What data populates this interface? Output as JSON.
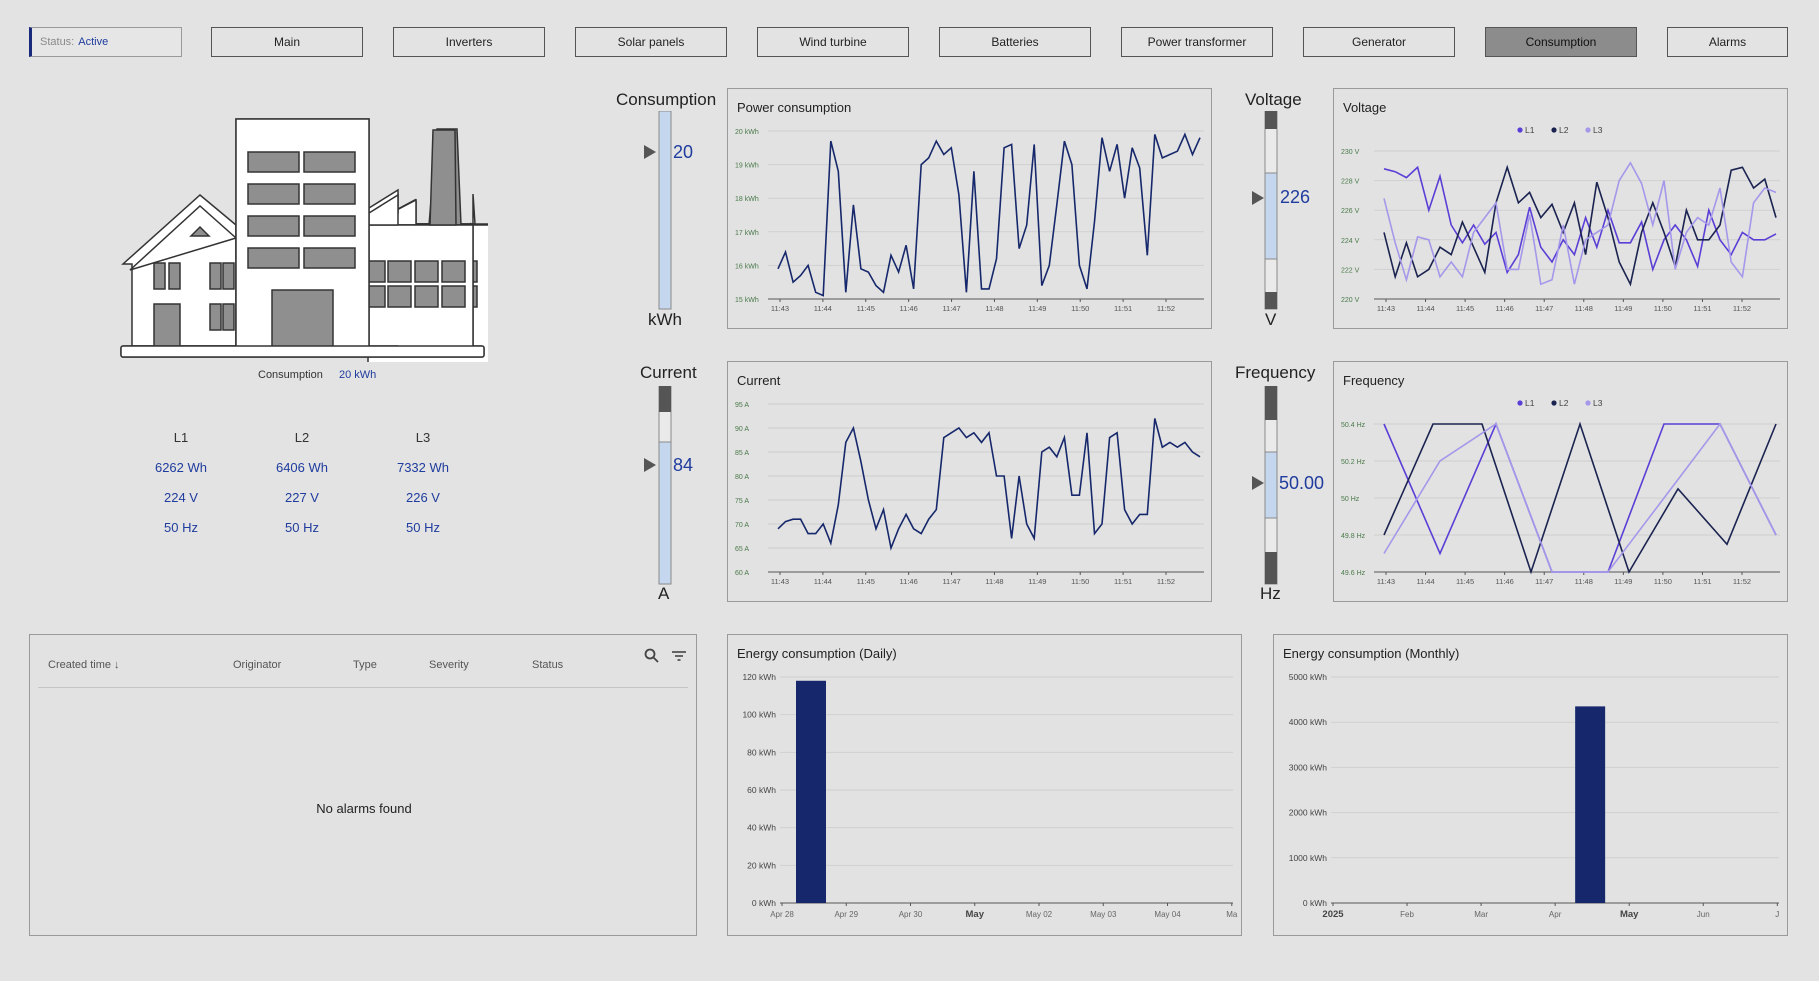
{
  "nav": {
    "status_key": "Status:",
    "status_value": "Active",
    "buttons": [
      "Main",
      "Inverters",
      "Solar panels",
      "Wind turbine",
      "Batteries",
      "Power transformer",
      "Generator",
      "Consumption",
      "Alarms"
    ],
    "active": "Consumption"
  },
  "building": {
    "consumption_label": "Consumption",
    "consumption_value": "20 kWh"
  },
  "phases": {
    "headers": [
      "L1",
      "L2",
      "L3"
    ],
    "rows": [
      [
        "6262 Wh",
        "6406 Wh",
        "7332 Wh"
      ],
      [
        "224 V",
        "227 V",
        "226 V"
      ],
      [
        "50 Hz",
        "50 Hz",
        "50 Hz"
      ]
    ]
  },
  "gauges": {
    "consumption": {
      "title": "Consumption",
      "value": "20",
      "unit": "kWh",
      "level": 1.0
    },
    "current": {
      "title": "Current",
      "value": "84",
      "unit": "A",
      "level": 0.84
    },
    "voltage": {
      "title": "Voltage",
      "value": "226",
      "unit": "V",
      "level": 0.5
    },
    "frequency": {
      "title": "Frequency",
      "value": "50.00",
      "unit": "Hz",
      "level": 0.5
    }
  },
  "colors": {
    "navy": "#16286b",
    "l1": "#5b3ed6",
    "l2": "#1b2350",
    "l3": "#a597ea",
    "gauge_fill": "#c5d7ee",
    "gauge_dark": "#555555"
  },
  "charts": {
    "power": {
      "title": "Power consumption"
    },
    "current": {
      "title": "Current"
    },
    "voltage": {
      "title": "Voltage",
      "legend": [
        "L1",
        "L2",
        "L3"
      ]
    },
    "frequency": {
      "title": "Frequency",
      "legend": [
        "L1",
        "L2",
        "L3"
      ]
    },
    "daily": {
      "title": "Energy consumption (Daily)"
    },
    "monthly": {
      "title": "Energy consumption (Monthly)"
    }
  },
  "alarms": {
    "columns": [
      "Created time",
      "Originator",
      "Type",
      "Severity",
      "Status"
    ],
    "empty_text": "No alarms found",
    "sort_arrow": "↓"
  },
  "chart_data": [
    {
      "type": "line",
      "title": "Power consumption",
      "x_ticks": [
        "11:43",
        "11:44",
        "11:45",
        "11:46",
        "11:47",
        "11:48",
        "11:49",
        "11:50",
        "11:51",
        "11:52"
      ],
      "y_ticks": [
        "20 kWh",
        "19 kWh",
        "18 kWh",
        "17 kWh",
        "16 kWh",
        "15 kWh"
      ],
      "ylim": [
        15,
        20
      ],
      "series": [
        {
          "values": [
            15.9,
            16.4,
            15.5,
            15.7,
            16.0,
            15.2,
            15.1,
            19.7,
            18.8,
            15.2,
            17.8,
            15.9,
            15.8,
            15.4,
            15.2,
            16.3,
            15.8,
            16.6,
            15.3,
            19.0,
            19.2,
            19.7,
            19.3,
            19.5,
            18.1,
            15.2,
            18.8,
            15.3,
            15.3,
            16.2,
            19.5,
            19.6,
            16.5,
            17.2,
            19.6,
            15.4,
            16.0,
            17.8,
            19.7,
            19.0,
            16.0,
            15.3,
            17.3,
            19.8,
            18.8,
            19.6,
            18.0,
            19.5,
            18.9,
            16.3,
            19.9,
            19.2,
            19.3,
            19.4,
            19.9,
            19.3,
            19.8
          ]
        }
      ]
    },
    {
      "type": "line",
      "title": "Current",
      "x_ticks": [
        "11:43",
        "11:44",
        "11:45",
        "11:46",
        "11:47",
        "11:48",
        "11:49",
        "11:50",
        "11:51",
        "11:52"
      ],
      "y_ticks": [
        "95 A",
        "90 A",
        "85 A",
        "80 A",
        "75 A",
        "70 A",
        "65 A",
        "60 A"
      ],
      "ylim": [
        60,
        95
      ],
      "series": [
        {
          "values": [
            69,
            70.5,
            71,
            71,
            68,
            68,
            70,
            66,
            74,
            87,
            90,
            83,
            75,
            69,
            73,
            65,
            69,
            72,
            69,
            68,
            71,
            73,
            88,
            89,
            90,
            88,
            89,
            87,
            89,
            80,
            80,
            67,
            80,
            70,
            67,
            85,
            86,
            84,
            88,
            76,
            76,
            89,
            68,
            70,
            88,
            89,
            73,
            70,
            72,
            72,
            92,
            86,
            87,
            86,
            87,
            85,
            84
          ]
        }
      ]
    },
    {
      "type": "line",
      "title": "Voltage",
      "x_ticks": [
        "11:43",
        "11:44",
        "11:45",
        "11:46",
        "11:47",
        "11:48",
        "11:49",
        "11:50",
        "11:51",
        "11:52"
      ],
      "y_ticks": [
        "230 V",
        "228 V",
        "226 V",
        "224 V",
        "222 V",
        "220 V"
      ],
      "ylim": [
        220,
        230
      ],
      "series": [
        {
          "name": "L1",
          "values": [
            228.8,
            228.6,
            228.2,
            228.9,
            226.0,
            228.3,
            225.0,
            223.8,
            225.0,
            223.7,
            224.5,
            221.8,
            223.0,
            226.2,
            223.5,
            222.5,
            224.0,
            223.0,
            225.5,
            223.5,
            226.0,
            223.8,
            223.8,
            225.2,
            222.0,
            224.0,
            225.0,
            224.0,
            222.2,
            226.0,
            224.0,
            223.0,
            224.5,
            224.0,
            224.0,
            224.4
          ]
        },
        {
          "name": "L2",
          "values": [
            224.5,
            221.5,
            223.8,
            221.5,
            222.0,
            223.5,
            223.0,
            225.2,
            223.5,
            221.8,
            226.5,
            228.9,
            226.5,
            227.2,
            225.5,
            226.4,
            224.5,
            226.5,
            223.0,
            227.9,
            225.5,
            222.5,
            221.0,
            224.5,
            226.5,
            224.5,
            222.2,
            226.0,
            224.0,
            224.0,
            225.0,
            228.7,
            228.9,
            227.5,
            228.1,
            225.5
          ]
        },
        {
          "name": "L3",
          "values": [
            226.8,
            223.8,
            221.3,
            224.2,
            224.0,
            221.5,
            222.5,
            221.5,
            224.5,
            225.5,
            226.5,
            222.0,
            222.0,
            225.7,
            221.0,
            221.3,
            225.0,
            221.0,
            224.0,
            224.5,
            225.0,
            228.0,
            229.2,
            227.8,
            225.0,
            228.0,
            222.0,
            224.5,
            225.5,
            225.0,
            227.5,
            222.5,
            221.5,
            226.5,
            227.5,
            227.2
          ]
        }
      ]
    },
    {
      "type": "line",
      "title": "Frequency",
      "x_ticks": [
        "11:43",
        "11:44",
        "11:45",
        "11:46",
        "11:47",
        "11:48",
        "11:49",
        "11:50",
        "11:51",
        "11:52"
      ],
      "y_ticks": [
        "50.4 Hz",
        "50.2 Hz",
        "50 Hz",
        "49.8 Hz",
        "49.6 Hz"
      ],
      "ylim": [
        49.6,
        50.4
      ],
      "series": [
        {
          "name": "L1",
          "values": [
            50.4,
            49.7,
            50.4,
            49.6,
            49.6,
            50.4,
            50.4,
            49.8
          ]
        },
        {
          "name": "L2",
          "values": [
            49.8,
            50.4,
            50.4,
            49.6,
            50.4,
            49.6,
            50.05,
            49.75,
            50.4
          ]
        },
        {
          "name": "L3",
          "values": [
            49.7,
            50.2,
            50.4,
            49.6,
            49.6,
            50.0,
            50.4,
            49.8
          ]
        }
      ]
    },
    {
      "type": "bar",
      "title": "Energy consumption (Daily)",
      "categories": [
        "Apr 28",
        "Apr 29",
        "Apr 30",
        "May",
        "May 02",
        "May 03",
        "May 04",
        "Ma"
      ],
      "y_ticks": [
        "120 kWh",
        "100 kWh",
        "80 kWh",
        "60 kWh",
        "40 kWh",
        "20 kWh",
        "0 kWh"
      ],
      "ylim": [
        0,
        120
      ],
      "values": [
        118,
        0,
        0,
        0,
        0,
        0,
        0,
        0
      ]
    },
    {
      "type": "bar",
      "title": "Energy consumption (Monthly)",
      "categories": [
        "2025",
        "Feb",
        "Mar",
        "Apr",
        "May",
        "Jun",
        "J"
      ],
      "y_ticks": [
        "5000 kWh",
        "4000 kWh",
        "3000 kWh",
        "2000 kWh",
        "1000 kWh",
        "0 kWh"
      ],
      "ylim": [
        0,
        5000
      ],
      "values": [
        0,
        0,
        0,
        4350,
        0,
        0,
        0
      ]
    }
  ]
}
